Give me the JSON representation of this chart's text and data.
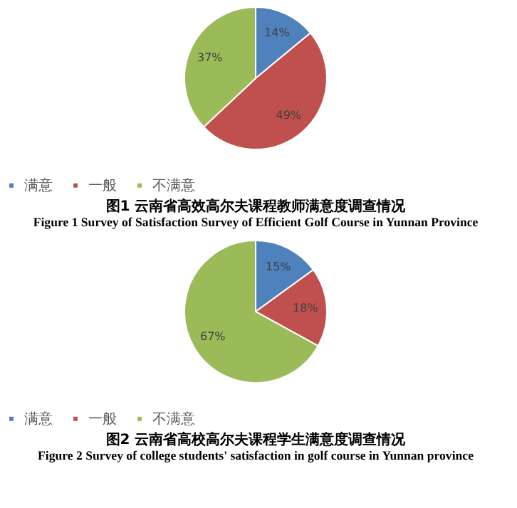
{
  "chart_data": [
    {
      "type": "pie",
      "title": "图1 云南省高效高尔夫课程教师满意度调查情况",
      "subtitle": "Figure 1 Survey of Satisfaction Survey of Efficient Golf Course in Yunnan Province",
      "categories": [
        "满意",
        "一般",
        "不满意"
      ],
      "values": [
        14,
        49,
        37
      ],
      "value_labels": [
        "14%",
        "49%",
        "37%"
      ],
      "colors": [
        "#4f81bd",
        "#c0504d",
        "#9bbb59"
      ],
      "legend": "bottom"
    },
    {
      "type": "pie",
      "title": "图2 云南省高校高尔夫课程学生满意度调查情况",
      "subtitle": "Figure 2 Survey of college students' satisfaction in golf course in Yunnan province",
      "categories": [
        "满意",
        "一般",
        "不满意"
      ],
      "values": [
        15,
        18,
        67
      ],
      "value_labels": [
        "15%",
        "18%",
        "67%"
      ],
      "colors": [
        "#4f81bd",
        "#c0504d",
        "#9bbb59"
      ],
      "legend": "bottom"
    }
  ]
}
